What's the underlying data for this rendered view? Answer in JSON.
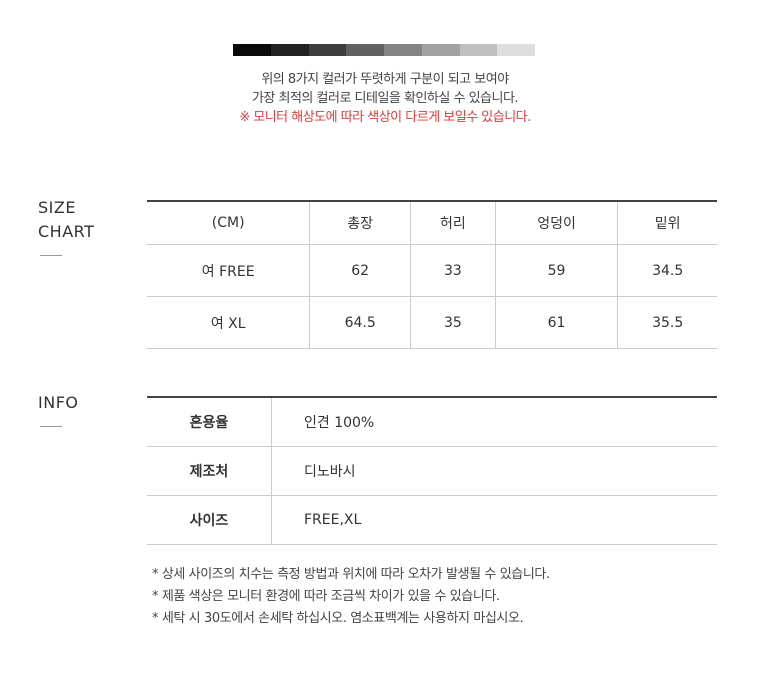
{
  "swatch_colors": [
    "#0a0a0a",
    "#222222",
    "#3d3d3d",
    "#616161",
    "#838383",
    "#a2a2a2",
    "#bfbfbf",
    "#dedede"
  ],
  "intro": {
    "line1": "위의 8가지 컬러가 뚜렷하게 구분이 되고 보여야",
    "line2": "가장 최적의 컬러로 디테일을 확인하실 수 있습니다.",
    "warning": "※ 모니터 해상도에 따라 색상이 다르게 보일수 있습니다.",
    "warning_color": "#e03a3a"
  },
  "size_chart": {
    "label_line1": "SIZE",
    "label_line2": "CHART",
    "headers": [
      "(CM)",
      "총장",
      "허리",
      "엉덩이",
      "밑위"
    ],
    "rows": [
      [
        "여 FREE",
        "62",
        "33",
        "59",
        "34.5"
      ],
      [
        "여 XL",
        "64.5",
        "35",
        "61",
        "35.5"
      ]
    ]
  },
  "info": {
    "label": "INFO",
    "rows": [
      {
        "key": "혼용율",
        "value": "인견 100%"
      },
      {
        "key": "제조처",
        "value": "디노바시"
      },
      {
        "key": "사이즈",
        "value": "FREE,XL"
      }
    ]
  },
  "notes": [
    "* 상세 사이즈의 치수는 측정 방법과 위치에 따라 오차가 발생될 수 있습니다.",
    "* 제품 색상은 모니터 환경에 따라 조금씩 차이가 있을 수 있습니다.",
    "* 세탁 시 30도에서 손세탁 하십시오. 염소표백계는 사용하지 마십시오."
  ]
}
